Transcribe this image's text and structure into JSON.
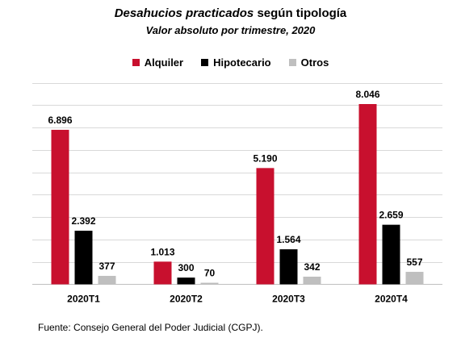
{
  "title_italic": "Desahucios practicados",
  "title_rest": " según tipología",
  "subtitle": "Valor absoluto por trimestre, 2020",
  "source": "Fuente: Consejo General del Poder Judicial (CGPJ).",
  "colors": {
    "alquiler": "#c8102e",
    "hipotecario": "#000000",
    "otros": "#bfbfbf",
    "grid": "#d9d9d9"
  },
  "chart_data": {
    "type": "bar",
    "title": "Desahucios practicados según tipología",
    "subtitle": "Valor absoluto por trimestre, 2020",
    "categories": [
      "2020T1",
      "2020T2",
      "2020T3",
      "2020T4"
    ],
    "series": [
      {
        "name": "Alquiler",
        "values": [
          6896,
          1013,
          5190,
          8046
        ],
        "labels": [
          "6.896",
          "1.013",
          "5.190",
          "8.046"
        ]
      },
      {
        "name": "Hipotecario",
        "values": [
          2392,
          300,
          1564,
          2659
        ],
        "labels": [
          "2.392",
          "300",
          "1.564",
          "2.659"
        ]
      },
      {
        "name": "Otros",
        "values": [
          377,
          70,
          342,
          557
        ],
        "labels": [
          "377",
          "70",
          "342",
          "557"
        ]
      }
    ],
    "ylim": [
      0,
      9000
    ],
    "grid": true,
    "legend": "top-center",
    "xlabel": "",
    "ylabel": ""
  }
}
